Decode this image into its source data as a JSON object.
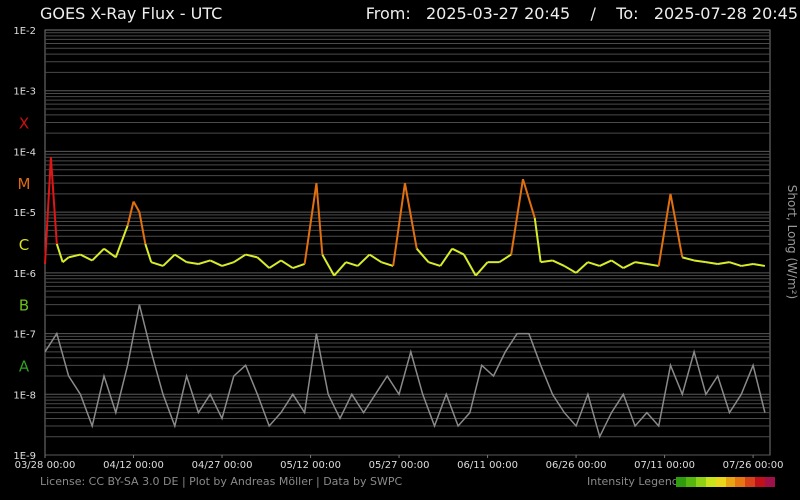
{
  "header": {
    "title": "GOES X-Ray Flux - UTC",
    "from_label": "From:",
    "from_value": "2025-03-27 20:45",
    "separator": "/",
    "to_label": "To:",
    "to_value": "2025-07-28 20:45"
  },
  "footer": {
    "license": "License: CC BY-SA 3.0 DE | Plot by Andreas Möller | Data by SWPC",
    "legend_label": "Intensity Legend",
    "legend_colors": [
      "#2f9c0d",
      "#56b80f",
      "#8ed115",
      "#c9e21a",
      "#e9d51a",
      "#e8a413",
      "#e57612",
      "#d8421a",
      "#c0101a",
      "#a0104a"
    ]
  },
  "colors": {
    "long_wave_low": "#5cc800",
    "long_wave_mid": "#d8ec2a",
    "long_wave_high": "#e07010",
    "long_wave_peak": "#e01515",
    "short_wave": "#8a8a8a",
    "grid": "#4a4a4a"
  },
  "chart_data": {
    "type": "line",
    "title": "GOES X-Ray Flux - UTC",
    "ylabel": "Short, Long (W/m²)",
    "yscale": "log",
    "ylim": [
      1e-09,
      0.01
    ],
    "y_ticks": [
      "1E-2",
      "1E-3",
      "1E-4",
      "1E-5",
      "1E-6",
      "1E-7",
      "1E-8",
      "1E-9"
    ],
    "flare_classes": [
      {
        "label": "X",
        "color": "#cc1111",
        "level": 0.0003
      },
      {
        "label": "M",
        "color": "#e06a10",
        "level": 3e-05
      },
      {
        "label": "C",
        "color": "#d8e020",
        "level": 3e-06
      },
      {
        "label": "B",
        "color": "#6ac018",
        "level": 3e-07
      },
      {
        "label": "A",
        "color": "#2fa020",
        "level": 3e-08
      }
    ],
    "xlim": [
      "2025-03-28 00:00",
      "2025-07-28 20:45"
    ],
    "x_ticks": [
      "03/28 00:00",
      "04/12 00:00",
      "04/27 00:00",
      "05/12 00:00",
      "05/27 00:00",
      "06/11 00:00",
      "06/26 00:00",
      "07/11 00:00",
      "07/26 00:00"
    ],
    "grid": true,
    "series": [
      {
        "name": "Long",
        "dates": [
          "2025-03-28",
          "2025-03-29",
          "2025-03-30",
          "2025-03-31",
          "2025-04-01",
          "2025-04-03",
          "2025-04-05",
          "2025-04-07",
          "2025-04-09",
          "2025-04-11",
          "2025-04-12",
          "2025-04-13",
          "2025-04-14",
          "2025-04-15",
          "2025-04-17",
          "2025-04-19",
          "2025-04-21",
          "2025-04-23",
          "2025-04-25",
          "2025-04-27",
          "2025-04-29",
          "2025-05-01",
          "2025-05-03",
          "2025-05-05",
          "2025-05-07",
          "2025-05-09",
          "2025-05-11",
          "2025-05-13",
          "2025-05-14",
          "2025-05-16",
          "2025-05-18",
          "2025-05-20",
          "2025-05-22",
          "2025-05-24",
          "2025-05-26",
          "2025-05-28",
          "2025-05-30",
          "2025-06-01",
          "2025-06-03",
          "2025-06-05",
          "2025-06-07",
          "2025-06-09",
          "2025-06-11",
          "2025-06-13",
          "2025-06-15",
          "2025-06-17",
          "2025-06-19",
          "2025-06-20",
          "2025-06-22",
          "2025-06-24",
          "2025-06-26",
          "2025-06-28",
          "2025-06-30",
          "2025-07-02",
          "2025-07-04",
          "2025-07-06",
          "2025-07-08",
          "2025-07-10",
          "2025-07-12",
          "2025-07-14",
          "2025-07-16",
          "2025-07-18",
          "2025-07-20",
          "2025-07-22",
          "2025-07-24",
          "2025-07-26",
          "2025-07-28"
        ],
        "values": [
          1.4e-06,
          8e-05,
          3e-06,
          1.5e-06,
          1.8e-06,
          2e-06,
          1.6e-06,
          2.5e-06,
          1.8e-06,
          6e-06,
          1.5e-05,
          1e-05,
          3e-06,
          1.5e-06,
          1.3e-06,
          2e-06,
          1.5e-06,
          1.4e-06,
          1.6e-06,
          1.3e-06,
          1.5e-06,
          2e-06,
          1.8e-06,
          1.2e-06,
          1.6e-06,
          1.2e-06,
          1.4e-06,
          3e-05,
          2e-06,
          9e-07,
          1.5e-06,
          1.3e-06,
          2e-06,
          1.5e-06,
          1.3e-06,
          3e-05,
          2.5e-06,
          1.5e-06,
          1.3e-06,
          2.5e-06,
          2e-06,
          9e-07,
          1.5e-06,
          1.5e-06,
          2e-06,
          3.5e-05,
          8e-06,
          1.5e-06,
          1.6e-06,
          1.3e-06,
          1e-06,
          1.5e-06,
          1.3e-06,
          1.6e-06,
          1.2e-06,
          1.5e-06,
          1.4e-06,
          1.3e-06,
          2e-05,
          1.8e-06,
          1.6e-06,
          1.5e-06,
          1.4e-06,
          1.5e-06,
          1.3e-06,
          1.4e-06,
          1.3e-06
        ]
      },
      {
        "name": "Short",
        "dates": [
          "2025-03-28",
          "2025-03-30",
          "2025-04-01",
          "2025-04-03",
          "2025-04-05",
          "2025-04-07",
          "2025-04-09",
          "2025-04-11",
          "2025-04-13",
          "2025-04-15",
          "2025-04-17",
          "2025-04-19",
          "2025-04-21",
          "2025-04-23",
          "2025-04-25",
          "2025-04-27",
          "2025-04-29",
          "2025-05-01",
          "2025-05-03",
          "2025-05-05",
          "2025-05-07",
          "2025-05-09",
          "2025-05-11",
          "2025-05-13",
          "2025-05-15",
          "2025-05-17",
          "2025-05-19",
          "2025-05-21",
          "2025-05-23",
          "2025-05-25",
          "2025-05-27",
          "2025-05-29",
          "2025-05-31",
          "2025-06-02",
          "2025-06-04",
          "2025-06-06",
          "2025-06-08",
          "2025-06-10",
          "2025-06-12",
          "2025-06-14",
          "2025-06-16",
          "2025-06-18",
          "2025-06-20",
          "2025-06-22",
          "2025-06-24",
          "2025-06-26",
          "2025-06-28",
          "2025-06-30",
          "2025-07-02",
          "2025-07-04",
          "2025-07-06",
          "2025-07-08",
          "2025-07-10",
          "2025-07-12",
          "2025-07-14",
          "2025-07-16",
          "2025-07-18",
          "2025-07-20",
          "2025-07-22",
          "2025-07-24",
          "2025-07-26",
          "2025-07-28"
        ],
        "values": [
          5e-08,
          1e-07,
          2e-08,
          1e-08,
          3e-09,
          2e-08,
          5e-09,
          3e-08,
          3e-07,
          5e-08,
          1e-08,
          3e-09,
          2e-08,
          5e-09,
          1e-08,
          4e-09,
          2e-08,
          3e-08,
          1e-08,
          3e-09,
          5e-09,
          1e-08,
          5e-09,
          1e-07,
          1e-08,
          4e-09,
          1e-08,
          5e-09,
          1e-08,
          2e-08,
          1e-08,
          5e-08,
          1e-08,
          3e-09,
          1e-08,
          3e-09,
          5e-09,
          3e-08,
          2e-08,
          5e-08,
          1e-07,
          1e-07,
          3e-08,
          1e-08,
          5e-09,
          3e-09,
          1e-08,
          2e-09,
          5e-09,
          1e-08,
          3e-09,
          5e-09,
          3e-09,
          3e-08,
          1e-08,
          5e-08,
          1e-08,
          2e-08,
          5e-09,
          1e-08,
          3e-08,
          5e-09
        ]
      }
    ]
  }
}
